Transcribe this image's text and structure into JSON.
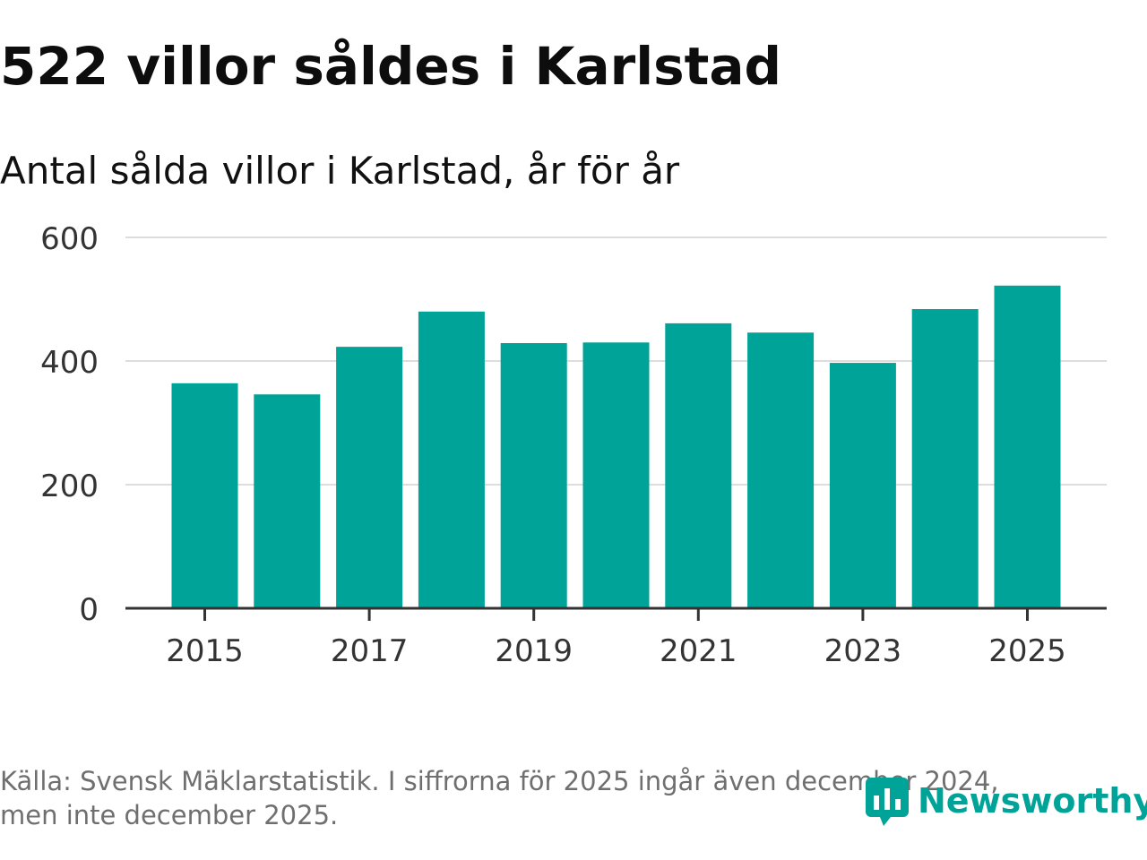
{
  "headline": "522 villor såldes i Karlstad",
  "chart_data": {
    "type": "bar",
    "title": "522 villor såldes i Karlstad",
    "subtitle": "Antal sålda villor i Karlstad, år för år",
    "categories": [
      "2015",
      "2016",
      "2017",
      "2018",
      "2019",
      "2020",
      "2021",
      "2022",
      "2023",
      "2024",
      "2025"
    ],
    "values": [
      364,
      346,
      423,
      480,
      429,
      430,
      461,
      446,
      397,
      484,
      522
    ],
    "x_tick_labels": [
      "2015",
      "2017",
      "2019",
      "2021",
      "2023",
      "2025"
    ],
    "y_ticks": [
      0,
      200,
      400,
      600
    ],
    "y_tick_labels": [
      "0",
      "200",
      "400",
      "600"
    ],
    "ylim": [
      0,
      600
    ],
    "xlabel": "",
    "ylabel": "",
    "grid": true,
    "bar_color": "#00a398",
    "grid_color": "#dddddd",
    "axis_color": "#333333"
  },
  "footnote": {
    "line1": "Källa: Svensk Mäklarstatistik. I siffrorna för 2025 ingår även december 2024,",
    "line2": "men inte december 2025."
  },
  "logo": {
    "text": "Newsworthy",
    "icon": "newsworthy-logo-icon",
    "color": "#00a398"
  }
}
